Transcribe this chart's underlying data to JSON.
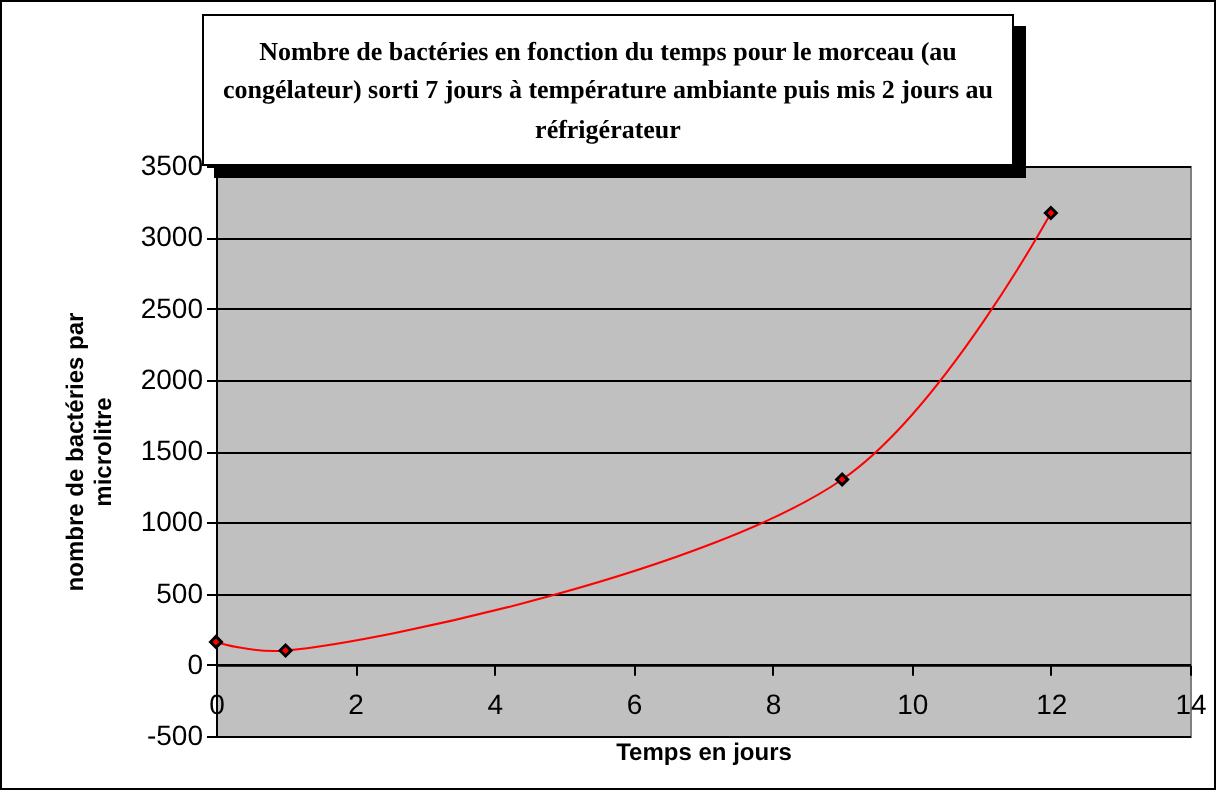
{
  "chart_data": {
    "type": "line",
    "title": "Nombre de bactéries en fonction du temps pour le morceau (au congélateur) sorti 7 jours à température ambiante puis mis 2 jours au réfrigérateur",
    "xlabel": "Temps en jours",
    "ylabel": "nombre de bactéries par microlitre",
    "x": [
      0,
      1,
      9,
      12
    ],
    "series": [
      {
        "color": "#ff0000",
        "values": [
          160,
          100,
          1300,
          3170
        ]
      }
    ],
    "xlim": [
      0,
      14
    ],
    "xticks": [
      0,
      2,
      4,
      6,
      8,
      10,
      12,
      14
    ],
    "ylim": [
      -500,
      3500
    ],
    "yticks": [
      -500,
      0,
      500,
      1000,
      1500,
      2000,
      2500,
      3000,
      3500
    ],
    "grid": "y",
    "marker": "diamond",
    "line_style": "solid"
  }
}
